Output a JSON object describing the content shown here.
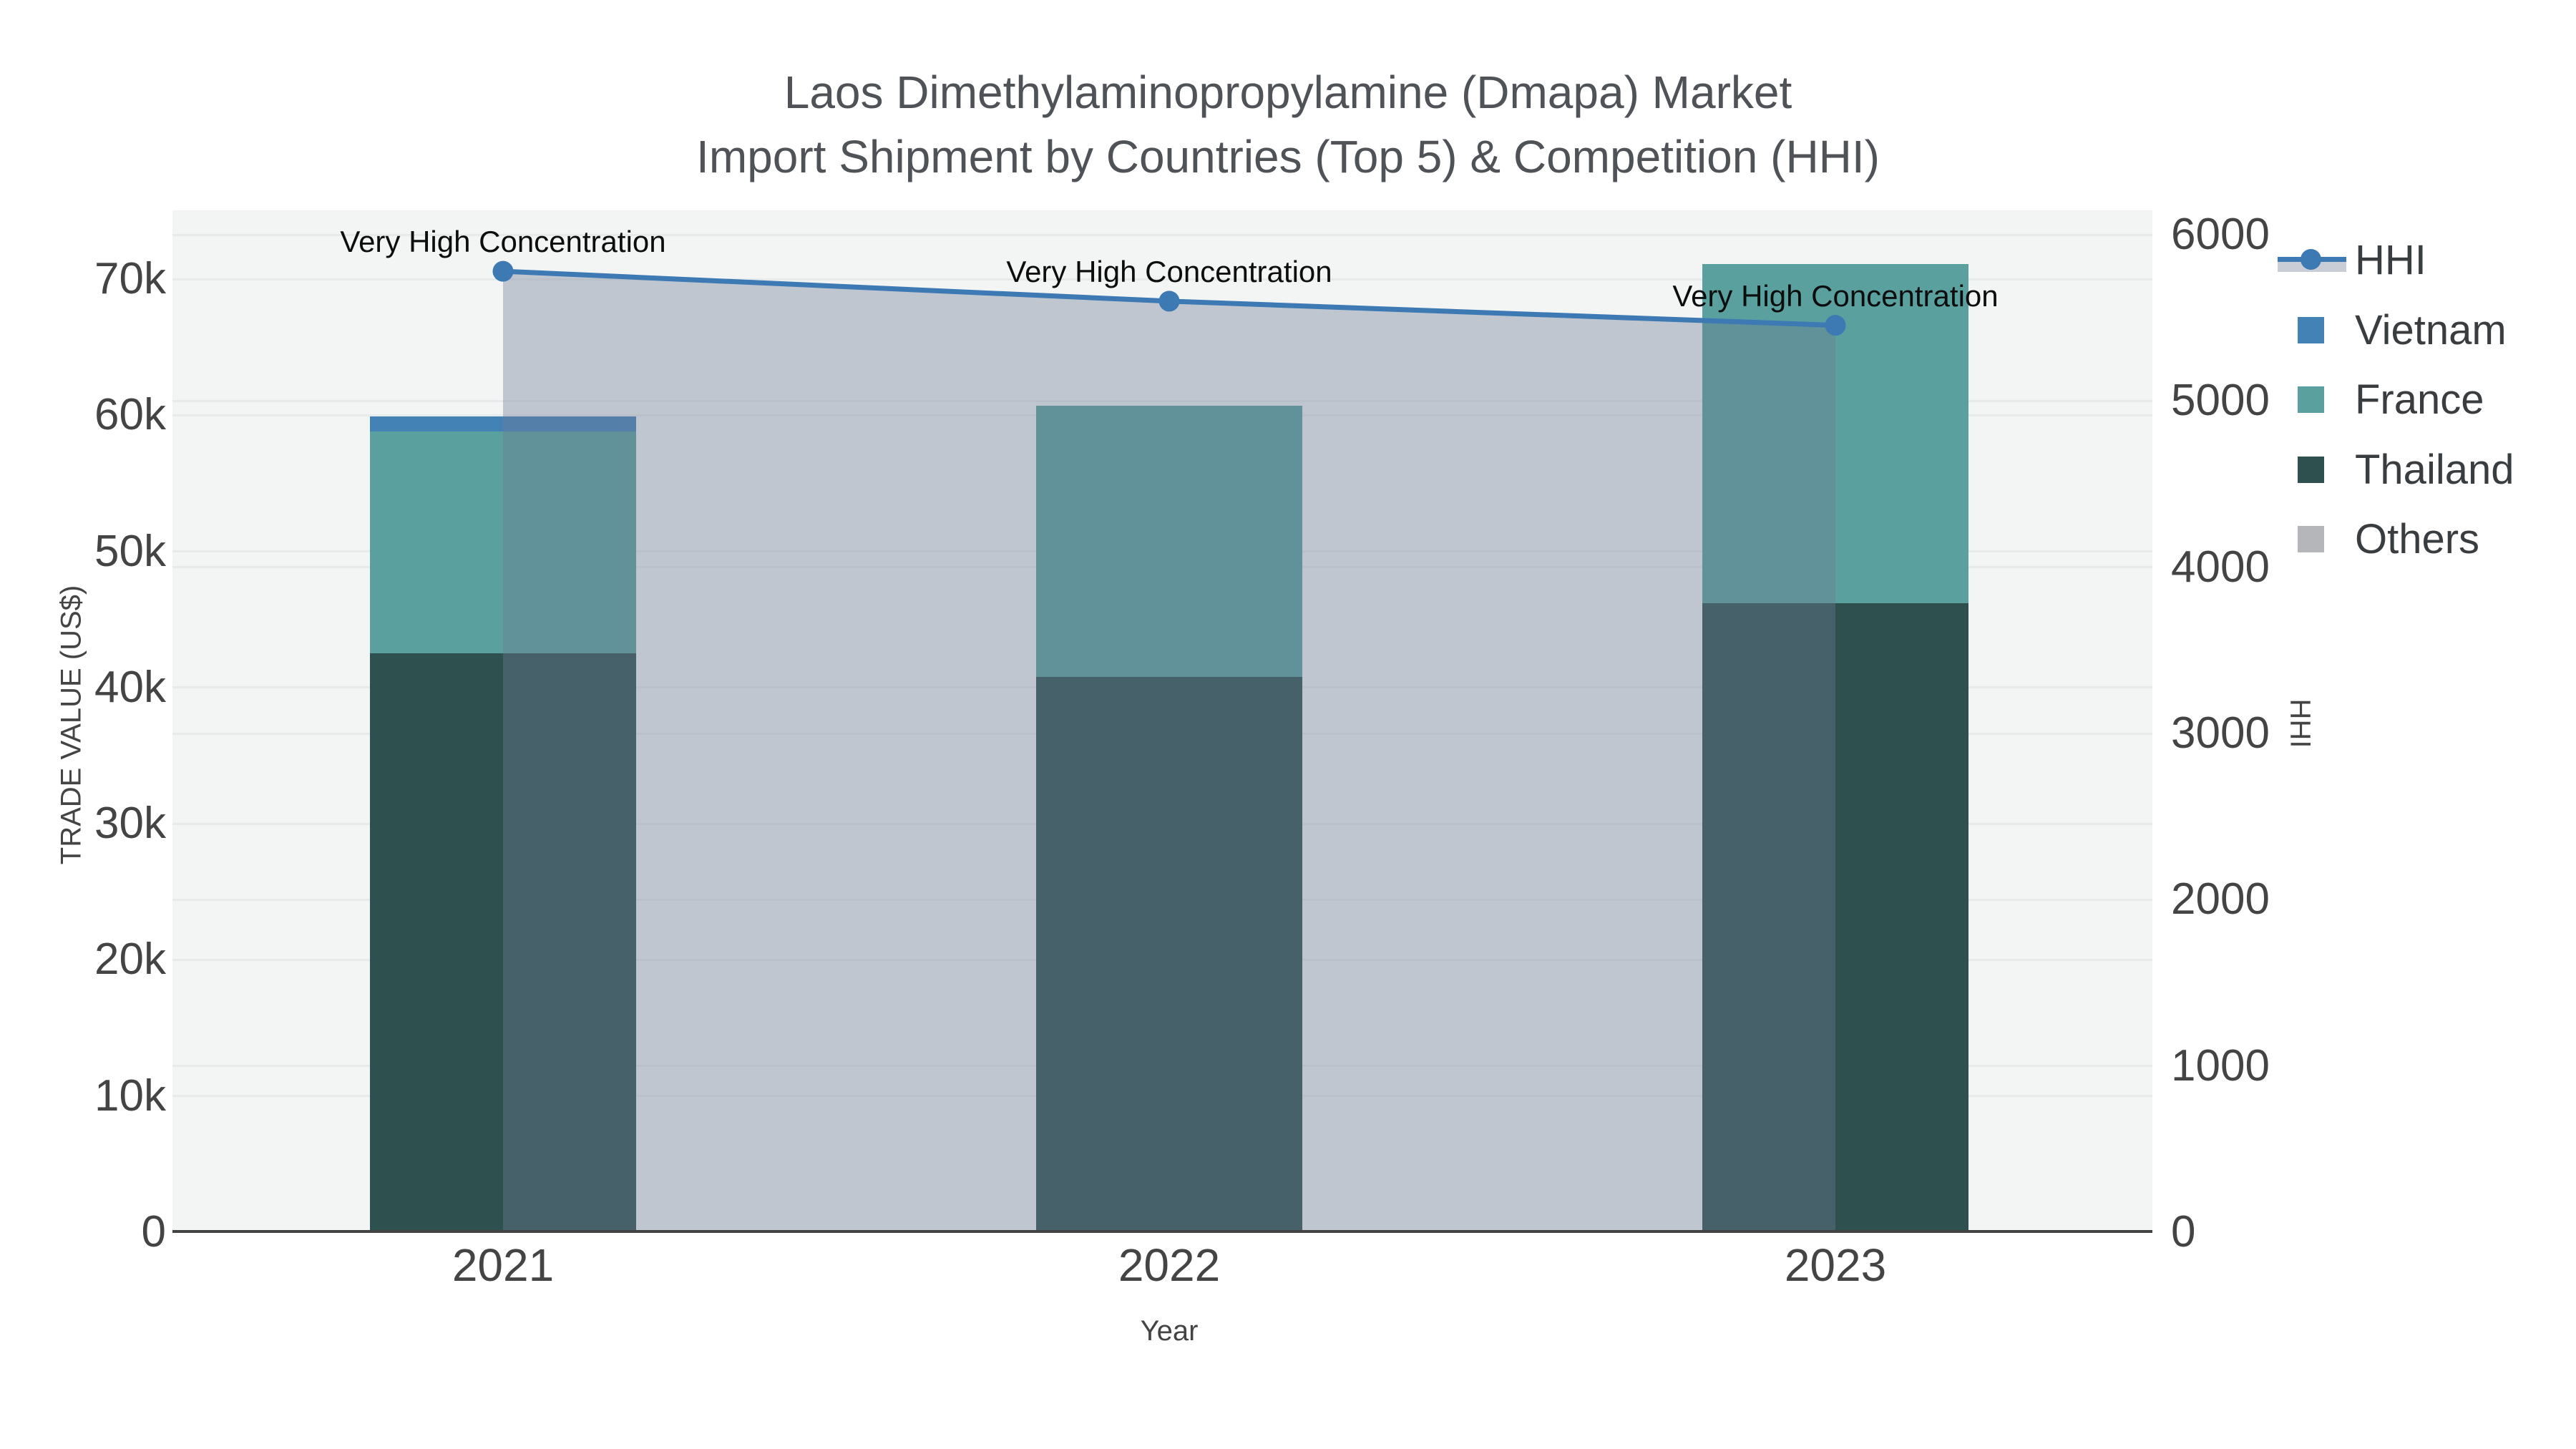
{
  "title": {
    "line1": "Laos Dimethylaminopropylamine (Dmapa) Market",
    "line2": "Import Shipment by Countries (Top 5) & Competition (HHI)"
  },
  "axes": {
    "x": {
      "title": "Year",
      "tick_labels": [
        "2021",
        "2022",
        "2023"
      ]
    },
    "y_left": {
      "title": "TRADE VALUE (US$)",
      "tick_labels": [
        "0",
        "10k",
        "20k",
        "30k",
        "40k",
        "50k",
        "60k",
        "70k"
      ],
      "tick_values": [
        0,
        10000,
        20000,
        30000,
        40000,
        50000,
        60000,
        70000
      ]
    },
    "y_right": {
      "title": "HHI",
      "tick_labels": [
        "0",
        "1000",
        "2000",
        "3000",
        "4000",
        "5000",
        "6000"
      ],
      "tick_values": [
        0,
        1000,
        2000,
        3000,
        4000,
        5000,
        6000
      ]
    }
  },
  "legend": {
    "items": [
      {
        "label": "HHI",
        "type": "line",
        "color": "#3d79b3",
        "fill_color": "rgba(110,124,148,0.38)"
      },
      {
        "label": "Vietnam",
        "type": "square",
        "color": "#4382b5"
      },
      {
        "label": "France",
        "type": "square",
        "color": "#5aa09f"
      },
      {
        "label": "Thailand",
        "type": "square",
        "color": "#2e5150"
      },
      {
        "label": "Others",
        "type": "square",
        "color": "#b4b6b9"
      }
    ]
  },
  "chart_data": {
    "type": "bar+line",
    "title": "Laos Dimethylaminopropylamine (Dmapa) Market Import Shipment by Countries (Top 5) & Competition (HHI)",
    "xlabel": "Year",
    "ylabel_left": "TRADE VALUE (US$)",
    "ylabel_right": "HHI",
    "categories": [
      "2021",
      "2022",
      "2023"
    ],
    "bar_series": [
      {
        "name": "Vietnam",
        "color": "#4382b5",
        "values": [
          1100,
          0,
          0
        ]
      },
      {
        "name": "France",
        "color": "#5aa09f",
        "values": [
          16300,
          19900,
          24900
        ]
      },
      {
        "name": "Thailand",
        "color": "#2e5150",
        "values": [
          42500,
          40800,
          46200
        ]
      },
      {
        "name": "Others",
        "color": "#b4b6b9",
        "values": [
          0,
          0,
          0
        ]
      }
    ],
    "stack_order_bottom_to_top": [
      "Thailand",
      "France",
      "Vietnam",
      "Others"
    ],
    "bar_totals": [
      59900,
      60700,
      71100
    ],
    "line_series": {
      "name": "HHI",
      "axis": "right",
      "color": "#3d79b3",
      "area_fill_color": "rgba(110,124,148,0.38)",
      "values": [
        5780,
        5600,
        5455
      ]
    },
    "annotations": [
      {
        "text": "Very High Concentration",
        "category": "2021"
      },
      {
        "text": "Very High Concentration",
        "category": "2022"
      },
      {
        "text": "Very High Concentration",
        "category": "2023"
      }
    ],
    "y_left_range": [
      0,
      75050
    ],
    "y_right_range": [
      0,
      6150
    ],
    "grid": true,
    "legend_position": "right"
  }
}
